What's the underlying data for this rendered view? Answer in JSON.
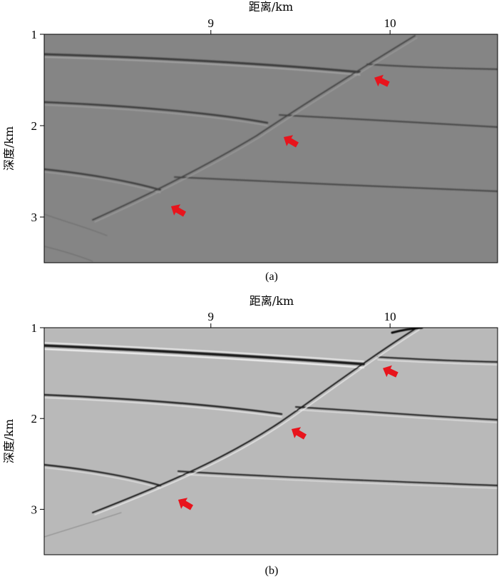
{
  "figure": {
    "panels": [
      {
        "id": "a",
        "caption": "(a)",
        "xlabel": "距离/km",
        "ylabel": "深度/km",
        "x_ticks": [
          {
            "value": 9,
            "label": "9"
          },
          {
            "value": 10,
            "label": "10"
          }
        ],
        "y_ticks": [
          {
            "value": 1,
            "label": "1"
          },
          {
            "value": 2,
            "label": "2"
          },
          {
            "value": 3,
            "label": "3"
          }
        ],
        "xlim": [
          8.07,
          10.6
        ],
        "ylim": [
          1.0,
          3.5
        ],
        "background_color": "#858585",
        "arrow_color": "#e8141c"
      },
      {
        "id": "b",
        "caption": "(b)",
        "xlabel": "距离/km",
        "ylabel": "深度/km",
        "x_ticks": [
          {
            "value": 9,
            "label": "9"
          },
          {
            "value": 10,
            "label": "10"
          }
        ],
        "y_ticks": [
          {
            "value": 1,
            "label": "1"
          },
          {
            "value": 2,
            "label": "2"
          },
          {
            "value": 3,
            "label": "3"
          }
        ],
        "xlim": [
          8.07,
          10.6
        ],
        "ylim": [
          1.0,
          3.5
        ],
        "background_color": "#b9b9b9",
        "arrow_color": "#e8141c"
      }
    ]
  }
}
